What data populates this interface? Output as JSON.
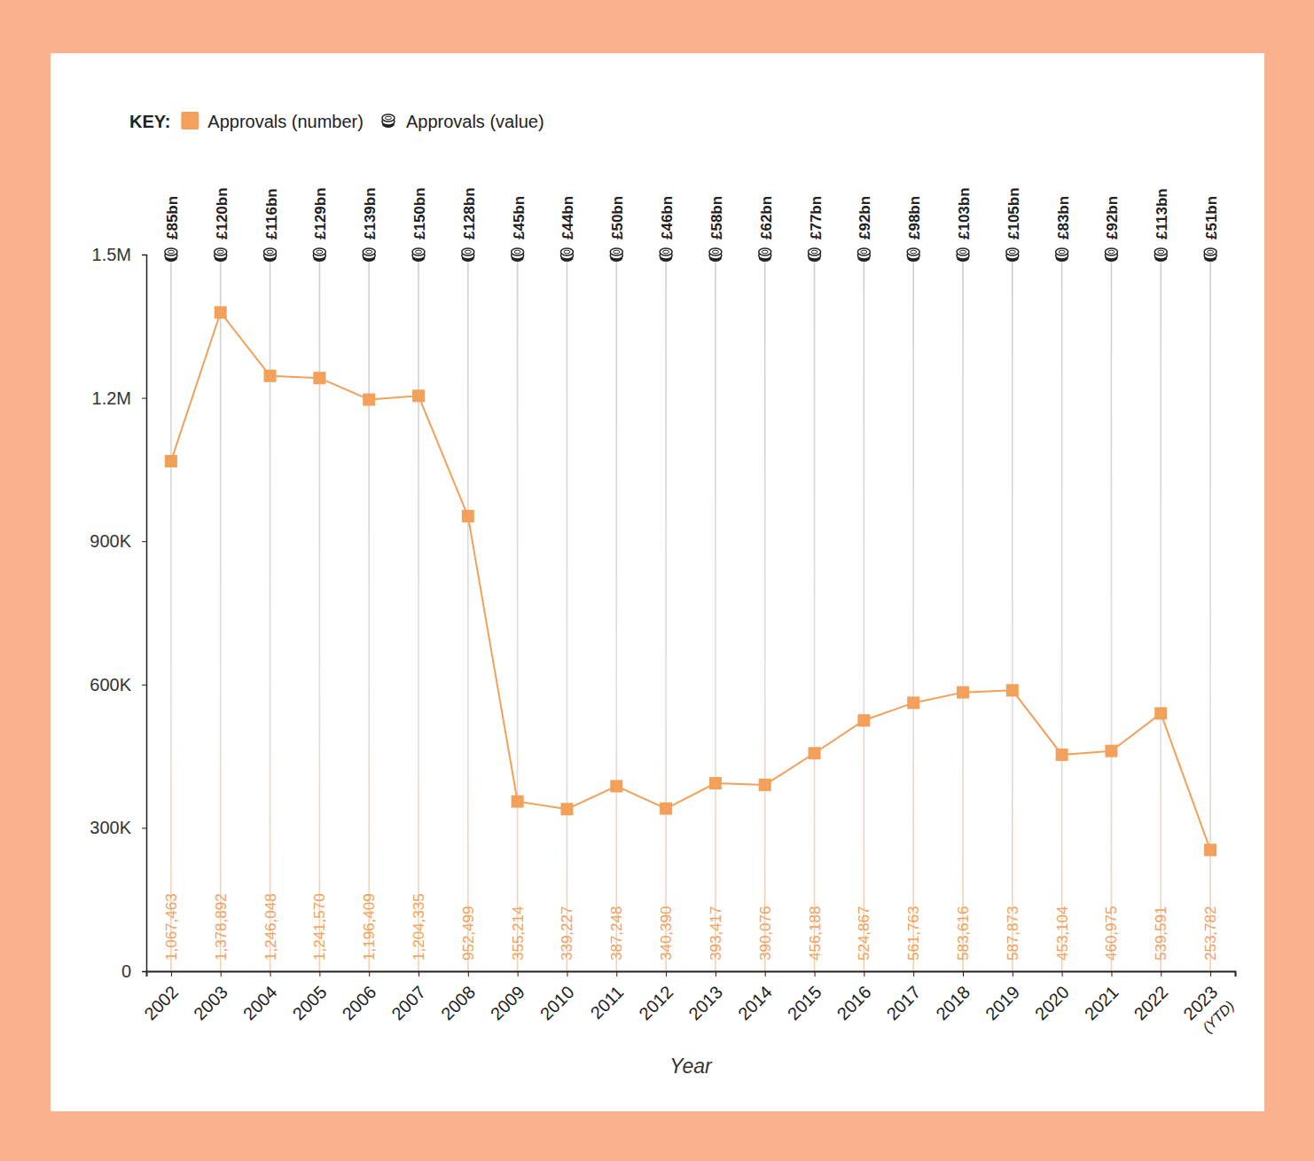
{
  "chart_data": {
    "type": "line",
    "legend_title": "KEY:",
    "legend": "top-left",
    "x_label": "Year",
    "categories": [
      "2002",
      "2003",
      "2004",
      "2005",
      "2006",
      "2007",
      "2008",
      "2009",
      "2010",
      "2011",
      "2012",
      "2013",
      "2014",
      "2015",
      "2016",
      "2017",
      "2018",
      "2019",
      "2020",
      "2021",
      "2022",
      "2023"
    ],
    "series": [
      {
        "name": "Approvals (number)",
        "color": "#f2a05a",
        "marker": "square",
        "values": [
          1067463,
          1378892,
          1246048,
          1241570,
          1196409,
          1204335,
          952499,
          355214,
          339227,
          387248,
          340390,
          393417,
          390076,
          456188,
          524867,
          561763,
          583616,
          587873,
          453104,
          460975,
          539591,
          253782
        ],
        "value_labels": [
          "1,067,463",
          "1,378,892",
          "1,246,048",
          "1,241,570",
          "1,196,409",
          "1,204,335",
          "952,499",
          "355,214",
          "339,227",
          "387,248",
          "340,390",
          "393,417",
          "390,076",
          "456,188",
          "524,867",
          "561,763",
          "583,616",
          "587,873",
          "453,104",
          "460,975",
          "539,591",
          "253,782"
        ]
      },
      {
        "name": "Approvals (value)",
        "type": "label",
        "color": "#222222",
        "marker": "coin",
        "values": [
          85,
          120,
          116,
          129,
          139,
          150,
          128,
          45,
          44,
          50,
          46,
          58,
          62,
          77,
          92,
          98,
          103,
          105,
          83,
          92,
          113,
          51
        ],
        "value_labels": [
          "£85bn",
          "£120bn",
          "£116bn",
          "£129bn",
          "£139bn",
          "£150bn",
          "£128bn",
          "£45bn",
          "£44bn",
          "£50bn",
          "£46bn",
          "£58bn",
          "£62bn",
          "£77bn",
          "£92bn",
          "£98bn",
          "£103bn",
          "£105bn",
          "£83bn",
          "£92bn",
          "£113bn",
          "£51bn"
        ]
      }
    ],
    "ylim": [
      0,
      1500000
    ],
    "yticks": [
      0,
      {
        "value": 300000,
        "label": "300K"
      },
      {
        "value": 600000,
        "label": "600K"
      },
      {
        "value": 900000,
        "label": "900K"
      },
      {
        "value": 1200000,
        "label": "1.2M"
      },
      {
        "value": 1500000,
        "label": "1.5M"
      }
    ],
    "grid": "x",
    "data_labels": true,
    "annotations": [
      {
        "text": "(YTD)",
        "category": "2023"
      }
    ]
  }
}
